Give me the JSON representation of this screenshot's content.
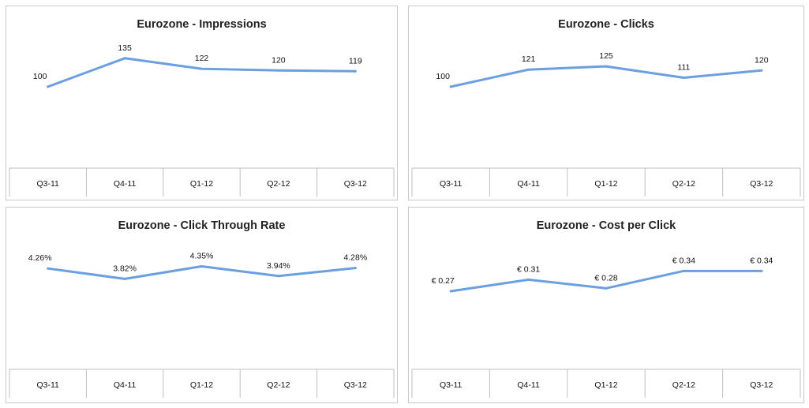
{
  "chart_data": [
    {
      "type": "line",
      "title": "Eurozone - Impressions",
      "categories": [
        "Q3-11",
        "Q4-11",
        "Q1-12",
        "Q2-12",
        "Q3-12"
      ],
      "values": [
        100,
        135,
        122,
        120,
        119
      ],
      "labels": [
        "100",
        "135",
        "122",
        "120",
        "119"
      ],
      "ylim": [
        0,
        160
      ],
      "color": "#6a9fe0",
      "grid": false
    },
    {
      "type": "line",
      "title": "Eurozone - Clicks",
      "categories": [
        "Q3-11",
        "Q4-11",
        "Q1-12",
        "Q2-12",
        "Q3-12"
      ],
      "values": [
        100,
        121,
        125,
        111,
        120
      ],
      "labels": [
        "100",
        "121",
        "125",
        "111",
        "120"
      ],
      "ylim": [
        0,
        160
      ],
      "color": "#6a9fe0",
      "grid": false
    },
    {
      "type": "line",
      "title": "Eurozone - Click Through Rate",
      "categories": [
        "Q3-11",
        "Q4-11",
        "Q1-12",
        "Q2-12",
        "Q3-12"
      ],
      "values": [
        4.26,
        3.82,
        4.35,
        3.94,
        4.28
      ],
      "labels": [
        "4.26%",
        "3.82%",
        "4.35%",
        "3.94%",
        "4.28%"
      ],
      "ylim": [
        0,
        5.5
      ],
      "color": "#6a9fe0",
      "grid": false
    },
    {
      "type": "line",
      "title": "Eurozone - Cost per Click",
      "categories": [
        "Q3-11",
        "Q4-11",
        "Q1-12",
        "Q2-12",
        "Q3-12"
      ],
      "values": [
        0.27,
        0.31,
        0.28,
        0.34,
        0.34
      ],
      "labels": [
        "€ 0.27",
        "€ 0.31",
        "€ 0.28",
        "€ 0.34",
        "€ 0.34"
      ],
      "ylim": [
        0,
        0.45
      ],
      "color": "#6a9fe0",
      "grid": false
    }
  ]
}
